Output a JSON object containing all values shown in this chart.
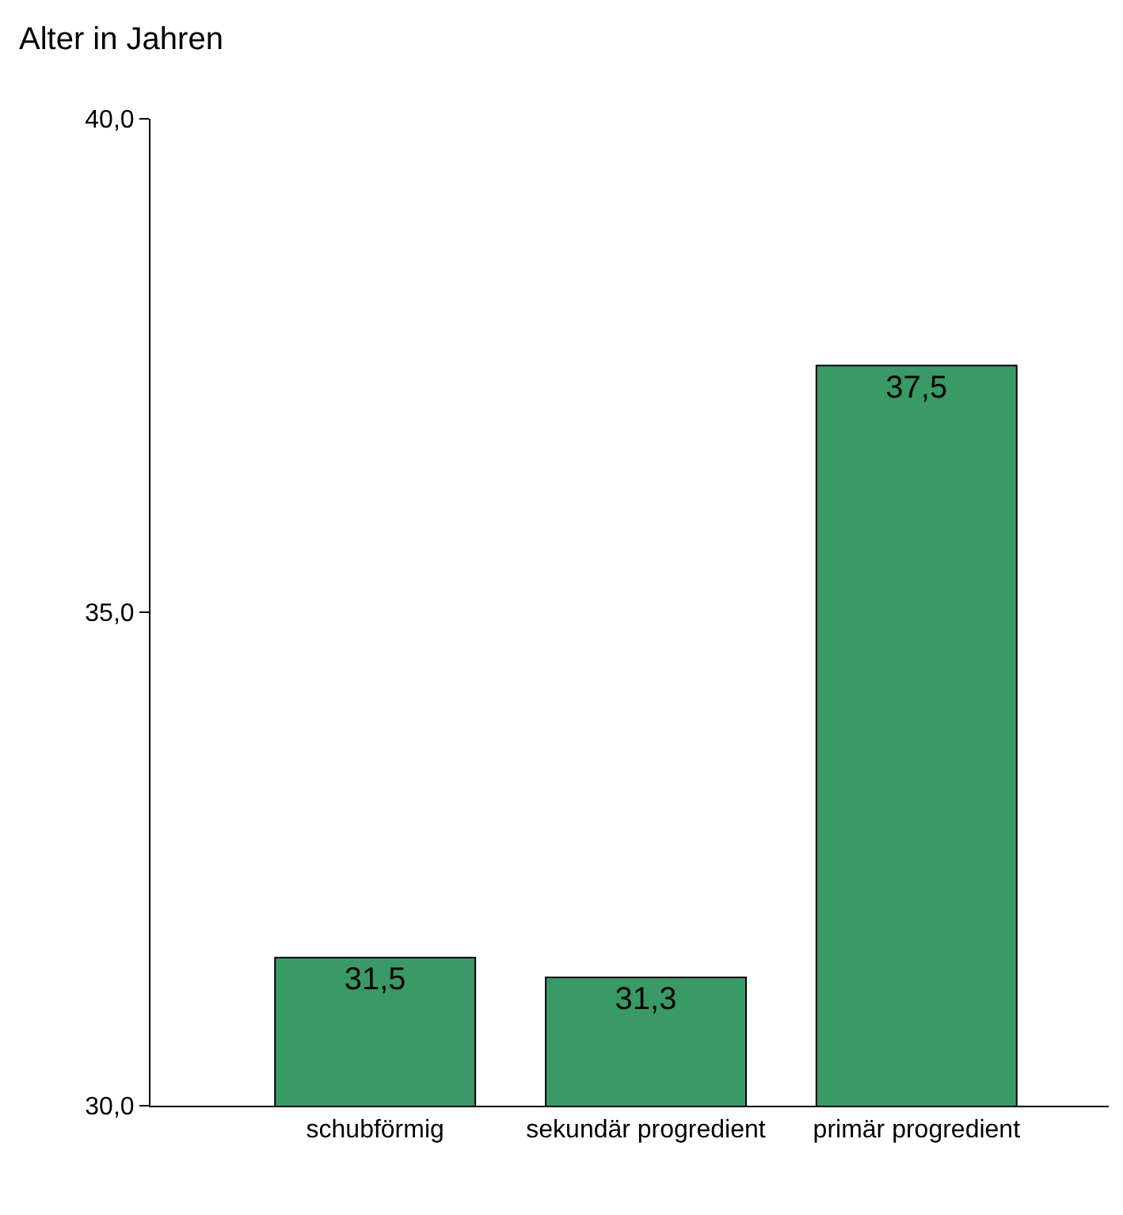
{
  "chart_data": {
    "type": "bar",
    "ylabel": "Alter in Jahren",
    "categories": [
      "schubförmig",
      "sekundär progredient",
      "primär progredient"
    ],
    "values": [
      31.5,
      31.3,
      37.5
    ],
    "value_labels": [
      "31,5",
      "31,3",
      "37,5"
    ],
    "color": "#3a9a66",
    "ylim": [
      30,
      40
    ],
    "yticks": [
      {
        "value": 30,
        "label": "30,0"
      },
      {
        "value": 35,
        "label": "35,0"
      },
      {
        "value": 40,
        "label": "40,0"
      }
    ],
    "legend": false
  }
}
